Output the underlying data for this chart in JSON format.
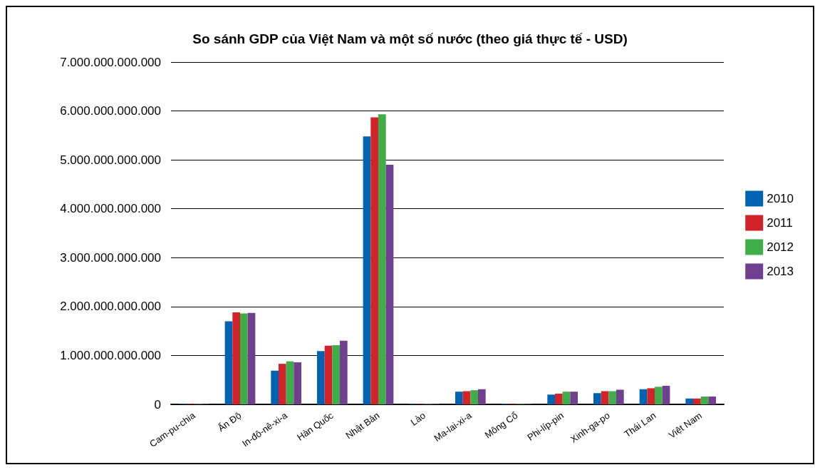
{
  "chart_data": {
    "type": "bar",
    "title": "So sánh GDP của Việt Nam và một số nước (theo giá thực tế - USD)",
    "categories": [
      "Cam-pu-chia",
      "Ấn Độ",
      "In-đô-nê-xi-a",
      "Hàn Quốc",
      "Nhật Bản",
      "Lào",
      "Ma-lai-xi-a",
      "Mông Cổ",
      "Phi-líp-pin",
      "Xinh-ga-po",
      "Thái Lan",
      "Việt Nam"
    ],
    "series": [
      {
        "name": "2010",
        "color": "#0063b1",
        "values": [
          10000000000,
          1700000000000,
          690000000000,
          1090000000000,
          5480000000000,
          10000000000,
          260000000000,
          10000000000,
          200000000000,
          230000000000,
          310000000000,
          120000000000
        ]
      },
      {
        "name": "2011",
        "color": "#d2232a",
        "values": [
          10000000000,
          1880000000000,
          830000000000,
          1200000000000,
          5870000000000,
          10000000000,
          270000000000,
          10000000000,
          220000000000,
          270000000000,
          330000000000,
          120000000000
        ]
      },
      {
        "name": "2012",
        "color": "#3fae49",
        "values": [
          10000000000,
          1860000000000,
          880000000000,
          1210000000000,
          5930000000000,
          10000000000,
          290000000000,
          10000000000,
          260000000000,
          270000000000,
          360000000000,
          160000000000
        ]
      },
      {
        "name": "2013",
        "color": "#713f90",
        "values": [
          10000000000,
          1870000000000,
          860000000000,
          1300000000000,
          4900000000000,
          10000000000,
          310000000000,
          10000000000,
          260000000000,
          300000000000,
          380000000000,
          160000000000
        ]
      }
    ],
    "ylim": [
      0,
      7000000000000
    ],
    "yticks": [
      0,
      {
        "value": 1000000000000,
        "label": "1.000.000.000.000"
      },
      {
        "value": 2000000000000,
        "label": "2.000.000.000.000"
      },
      {
        "value": 3000000000000,
        "label": "3.000.000.000.000"
      },
      {
        "value": 4000000000000,
        "label": "4.000.000.000.000"
      },
      {
        "value": 5000000000000,
        "label": "5.000.000.000.000"
      },
      {
        "value": 6000000000000,
        "label": "6.000.000.000.000"
      },
      {
        "value": 7000000000000,
        "label": "7.000.000.000.000"
      }
    ],
    "grid": "y",
    "legend": "right"
  }
}
